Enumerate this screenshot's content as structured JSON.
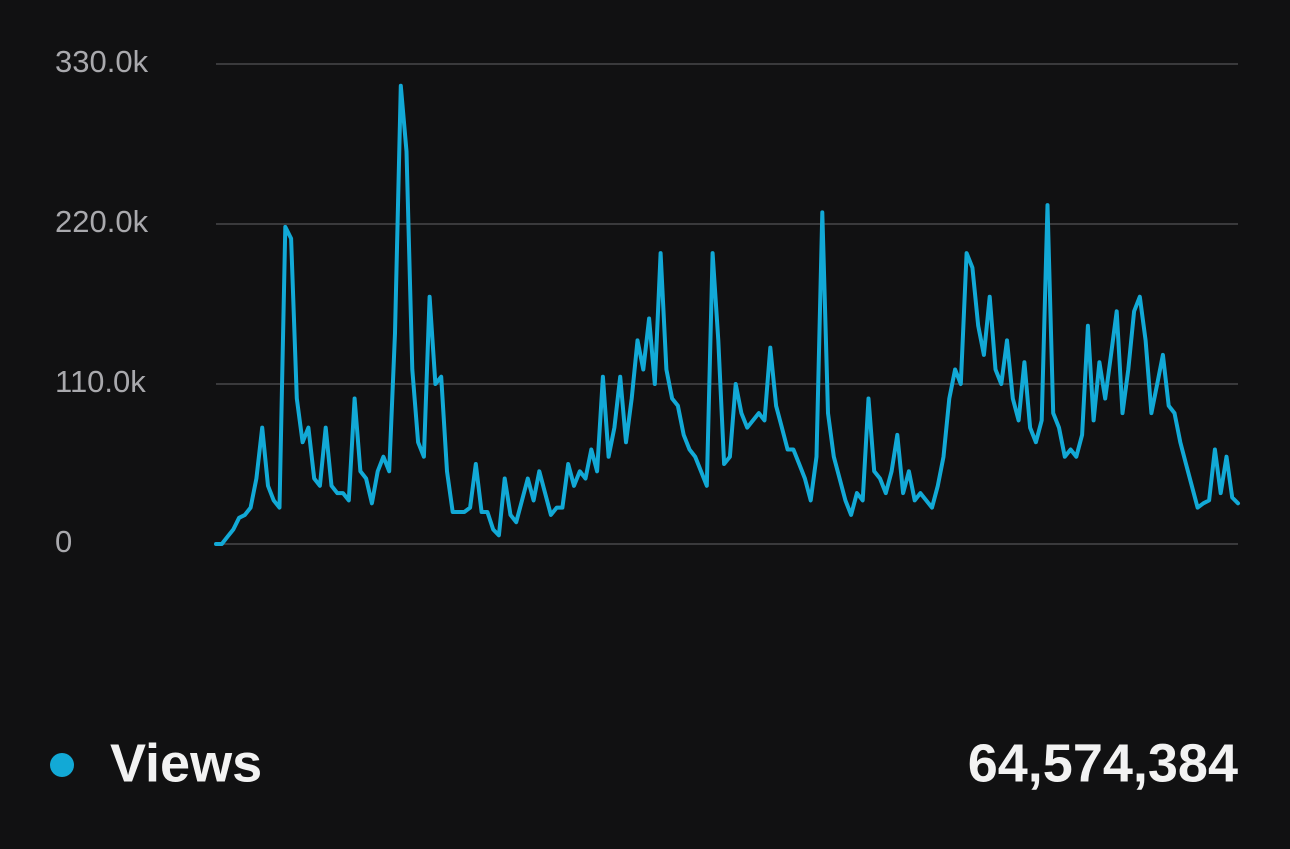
{
  "chart_data": {
    "type": "line",
    "ylim": [
      0,
      330000
    ],
    "yticks": [
      0,
      {
        "value": 110000,
        "label": "110.0k"
      },
      {
        "value": 220000,
        "label": "220.0k"
      },
      {
        "value": 330000,
        "label": "330.0k"
      }
    ],
    "grid": true,
    "series": [
      {
        "name": "Views",
        "color": "#12a9d6",
        "values": [
          0,
          0,
          5000,
          10000,
          18000,
          20000,
          25000,
          45000,
          80000,
          40000,
          30000,
          25000,
          218000,
          210000,
          100000,
          70000,
          80000,
          45000,
          40000,
          80000,
          40000,
          35000,
          35000,
          30000,
          100000,
          50000,
          45000,
          28000,
          50000,
          60000,
          50000,
          145000,
          315000,
          270000,
          120000,
          70000,
          60000,
          170000,
          110000,
          115000,
          50000,
          22000,
          22000,
          22000,
          25000,
          55000,
          22000,
          22000,
          10000,
          6000,
          45000,
          20000,
          15000,
          30000,
          45000,
          30000,
          50000,
          35000,
          20000,
          25000,
          25000,
          55000,
          40000,
          50000,
          45000,
          65000,
          50000,
          115000,
          60000,
          80000,
          115000,
          70000,
          100000,
          140000,
          120000,
          155000,
          110000,
          200000,
          120000,
          100000,
          95000,
          75000,
          65000,
          60000,
          50000,
          40000,
          200000,
          140000,
          55000,
          60000,
          110000,
          90000,
          80000,
          85000,
          90000,
          85000,
          135000,
          95000,
          80000,
          65000,
          65000,
          55000,
          45000,
          30000,
          60000,
          228000,
          90000,
          60000,
          45000,
          30000,
          20000,
          35000,
          30000,
          100000,
          50000,
          45000,
          35000,
          50000,
          75000,
          35000,
          50000,
          30000,
          35000,
          30000,
          25000,
          40000,
          60000,
          100000,
          120000,
          110000,
          200000,
          190000,
          150000,
          130000,
          170000,
          120000,
          110000,
          140000,
          100000,
          85000,
          125000,
          80000,
          70000,
          85000,
          233000,
          90000,
          80000,
          60000,
          65000,
          60000,
          75000,
          150000,
          85000,
          125000,
          100000,
          130000,
          160000,
          90000,
          120000,
          160000,
          170000,
          140000,
          90000,
          110000,
          130000,
          95000,
          90000,
          70000,
          55000,
          40000,
          25000,
          28000,
          30000,
          65000,
          35000,
          60000,
          32000,
          28000
        ]
      }
    ],
    "total": "64,574,384"
  }
}
